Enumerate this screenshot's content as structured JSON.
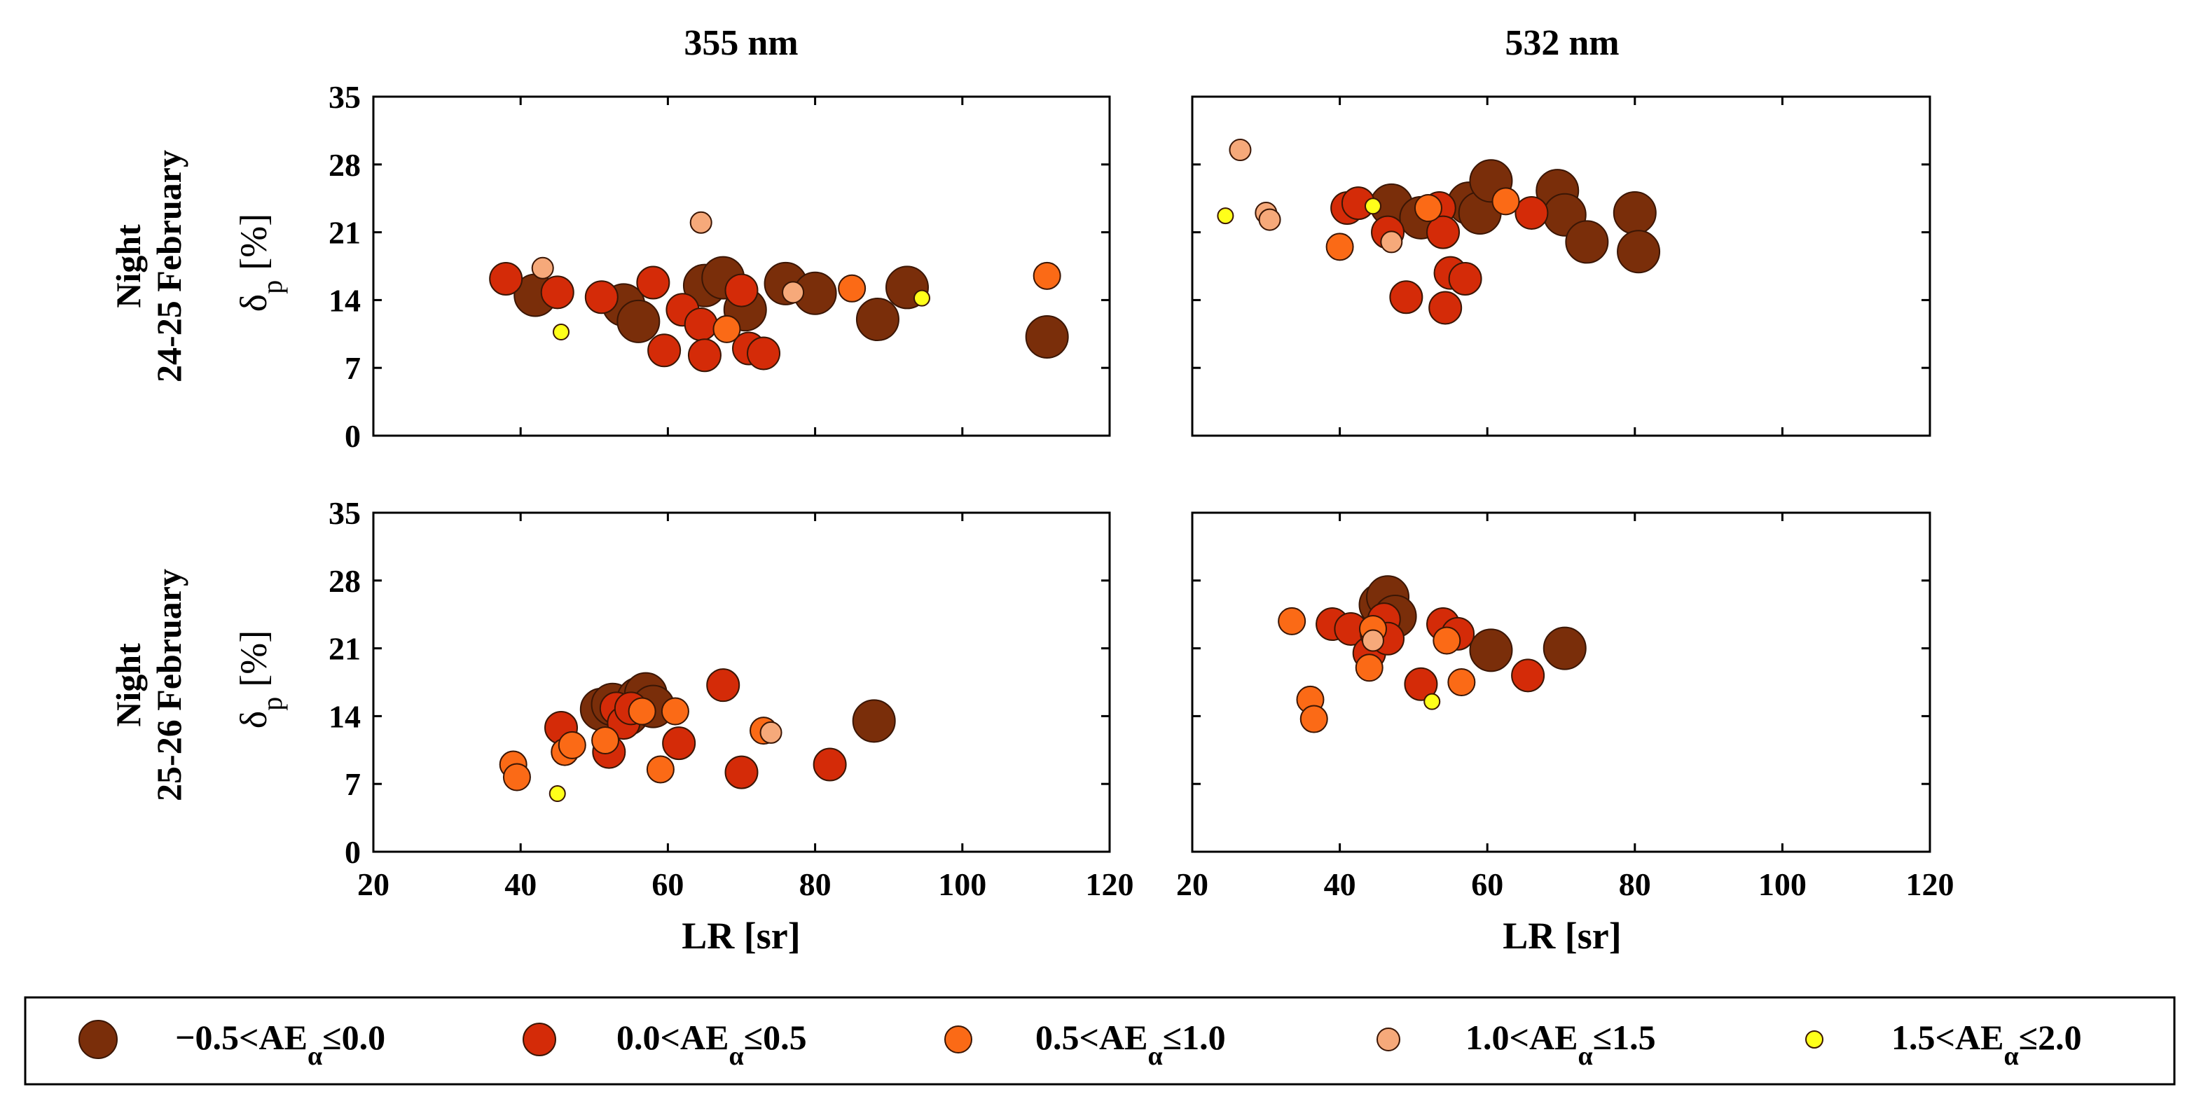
{
  "chart_data": {
    "type": "scatter",
    "x_label_text": "LR [sr]",
    "y_label_main": "δ",
    "y_label_sub": "p",
    "y_label_unit": "[%]",
    "xlim": [
      20,
      120
    ],
    "ylim": [
      0,
      35
    ],
    "x_ticks": [
      20,
      40,
      60,
      80,
      100,
      120
    ],
    "y_ticks": [
      0,
      7,
      14,
      21,
      28,
      35
    ],
    "columns": [
      "355 nm",
      "532 nm"
    ],
    "rows": [
      {
        "line1": "Night",
        "line2": "24-25 February"
      },
      {
        "line1": "Night",
        "line2": "25-26 February"
      }
    ],
    "categories": [
      {
        "key": "c1",
        "label_pre": "−0.5<AE",
        "label_sub": "α",
        "label_post": "≤0.0",
        "color": "#7a2e0a"
      },
      {
        "key": "c2",
        "label_pre": "0.0<AE",
        "label_sub": "α",
        "label_post": "≤0.5",
        "color": "#d42b08"
      },
      {
        "key": "c3",
        "label_pre": "0.5<AE",
        "label_sub": "α",
        "label_post": "≤1.0",
        "color": "#fb6a16"
      },
      {
        "key": "c4",
        "label_pre": "1.0<AE",
        "label_sub": "α",
        "label_post": "≤1.5",
        "color": "#f6a97a"
      },
      {
        "key": "c5",
        "label_pre": "1.5<AE",
        "label_sub": "α",
        "label_post": "≤2.0",
        "color": "#ffff1a"
      }
    ],
    "panels": [
      {
        "name": "night-24-25-355nm",
        "series": {
          "c1": [
            [
              42,
              14.5
            ],
            [
              54,
              13.5
            ],
            [
              56,
              11.8
            ],
            [
              65,
              15.5
            ],
            [
              67.5,
              16.3
            ],
            [
              70.5,
              13
            ],
            [
              76,
              15.7
            ],
            [
              80,
              14.7
            ],
            [
              88.5,
              12
            ],
            [
              92.5,
              15.3
            ],
            [
              111.5,
              10.2
            ]
          ],
          "c2": [
            [
              38,
              16.2
            ],
            [
              45,
              14.8
            ],
            [
              51,
              14.3
            ],
            [
              58,
              15.8
            ],
            [
              59.5,
              8.8
            ],
            [
              62,
              13
            ],
            [
              64.5,
              11.5
            ],
            [
              65,
              8.3
            ],
            [
              70,
              15
            ],
            [
              71,
              9
            ],
            [
              73,
              8.5
            ]
          ],
          "c3": [
            [
              68,
              11
            ],
            [
              85,
              15.2
            ],
            [
              111.5,
              16.5
            ]
          ],
          "c4": [
            [
              43,
              17.3
            ],
            [
              64.5,
              22
            ],
            [
              77,
              14.8
            ]
          ],
          "c5": [
            [
              45.5,
              10.7
            ],
            [
              94.5,
              14.2
            ]
          ]
        }
      },
      {
        "name": "night-24-25-532nm",
        "series": {
          "c1": [
            [
              47,
              23.8
            ],
            [
              51,
              22.5
            ],
            [
              57.5,
              24
            ],
            [
              59,
              23
            ],
            [
              60.5,
              26.3
            ],
            [
              69.5,
              25.3
            ],
            [
              70.5,
              22.8
            ],
            [
              73.5,
              20
            ],
            [
              80,
              23
            ],
            [
              80.5,
              19
            ]
          ],
          "c2": [
            [
              41,
              23.5
            ],
            [
              42.5,
              24
            ],
            [
              46.5,
              21
            ],
            [
              49,
              14.3
            ],
            [
              53.5,
              23.5
            ],
            [
              54,
              21
            ],
            [
              54.3,
              13.2
            ],
            [
              55,
              16.8
            ],
            [
              57,
              16.2
            ],
            [
              66,
              23
            ]
          ],
          "c3": [
            [
              40,
              19.5
            ],
            [
              52,
              23.5
            ],
            [
              62.5,
              24.2
            ]
          ],
          "c4": [
            [
              26.5,
              29.5
            ],
            [
              30,
              23
            ],
            [
              30.5,
              22.3
            ],
            [
              47,
              20
            ]
          ],
          "c5": [
            [
              24.5,
              22.7
            ],
            [
              44.5,
              23.7
            ]
          ]
        }
      },
      {
        "name": "night-25-26-355nm",
        "series": {
          "c1": [
            [
              51,
              14.7
            ],
            [
              52.5,
              15.2
            ],
            [
              54.5,
              14.2
            ],
            [
              56,
              15.8
            ],
            [
              57,
              16.3
            ],
            [
              58,
              15
            ],
            [
              88,
              13.5
            ]
          ],
          "c2": [
            [
              45.5,
              12.8
            ],
            [
              52,
              10.3
            ],
            [
              53,
              14.8
            ],
            [
              54,
              13.3
            ],
            [
              55,
              14.8
            ],
            [
              61.5,
              11.2
            ],
            [
              67.5,
              17.2
            ],
            [
              70,
              8.2
            ],
            [
              82,
              9
            ]
          ],
          "c3": [
            [
              39,
              9
            ],
            [
              39.5,
              7.7
            ],
            [
              46,
              10.3
            ],
            [
              47,
              11
            ],
            [
              51.5,
              11.5
            ],
            [
              56.5,
              14.5
            ],
            [
              59,
              8.5
            ],
            [
              61,
              14.5
            ],
            [
              73,
              12.5
            ]
          ],
          "c4": [
            [
              74,
              12.3
            ]
          ],
          "c5": [
            [
              45,
              6
            ]
          ]
        }
      },
      {
        "name": "night-25-26-532nm",
        "series": {
          "c1": [
            [
              45.5,
              25.5
            ],
            [
              46.5,
              26.3
            ],
            [
              47.5,
              24.3
            ],
            [
              60.5,
              20.8
            ],
            [
              70.5,
              21
            ]
          ],
          "c2": [
            [
              39,
              23.5
            ],
            [
              41.5,
              23
            ],
            [
              44,
              20.5
            ],
            [
              45,
              22.5
            ],
            [
              46,
              24
            ],
            [
              46.5,
              22
            ],
            [
              51,
              17.3
            ],
            [
              54,
              23.5
            ],
            [
              56,
              22.5
            ],
            [
              65.5,
              18.2
            ]
          ],
          "c3": [
            [
              33.5,
              23.8
            ],
            [
              36,
              15.7
            ],
            [
              36.5,
              13.7
            ],
            [
              44,
              19
            ],
            [
              44.5,
              23
            ],
            [
              54.5,
              21.8
            ],
            [
              56.5,
              17.5
            ]
          ],
          "c4": [
            [
              44.5,
              21.8
            ]
          ],
          "c5": [
            [
              52.5,
              15.5
            ]
          ]
        }
      }
    ]
  }
}
